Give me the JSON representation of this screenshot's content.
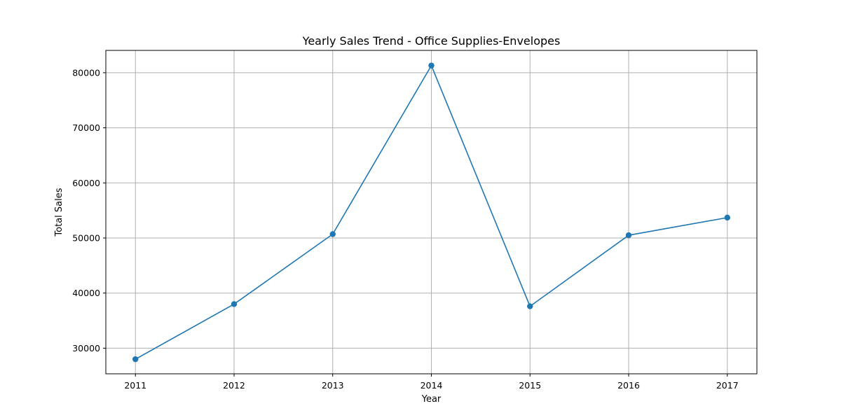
{
  "chart_data": {
    "type": "line",
    "title": "Yearly Sales Trend - Office Supplies-Envelopes",
    "xlabel": "Year",
    "ylabel": "Total Sales",
    "x": [
      2011,
      2012,
      2013,
      2014,
      2015,
      2016,
      2017
    ],
    "series": [
      {
        "values": [
          28000,
          38000,
          50700,
          81300,
          37600,
          50500,
          53700
        ],
        "color": "#1f77b4",
        "marker": "circle"
      }
    ],
    "xlim": [
      2010.7,
      2017.3
    ],
    "ylim": [
      25350,
      84050
    ],
    "xticks": [
      2011,
      2012,
      2013,
      2014,
      2015,
      2016,
      2017
    ],
    "yticks": [
      30000,
      40000,
      50000,
      60000,
      70000,
      80000
    ],
    "grid": true,
    "legend": "none"
  }
}
